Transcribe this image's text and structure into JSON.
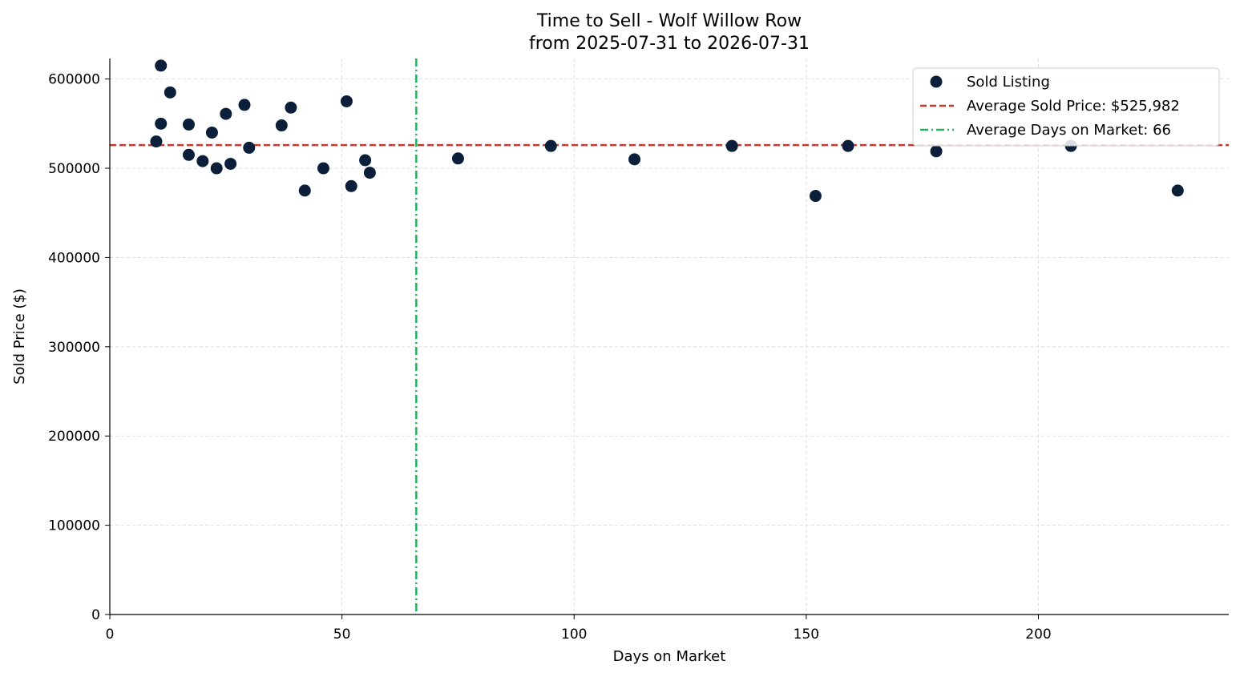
{
  "chart_data": {
    "type": "scatter",
    "title": "Time to Sell - Wolf Willow Row",
    "subtitle": "from 2025-07-31 to 2026-07-31",
    "xlabel": "Days on Market",
    "ylabel": "Sold Price ($)",
    "xlim": [
      0,
      241
    ],
    "ylim": [
      0,
      623000
    ],
    "xticks": [
      0,
      50,
      100,
      150,
      200
    ],
    "yticks": [
      0,
      100000,
      200000,
      300000,
      400000,
      500000,
      600000
    ],
    "grid": true,
    "legend_position": "top-right",
    "series": [
      {
        "name": "Sold Listing",
        "color": "#0b1f3a",
        "points": [
          {
            "x": 10,
            "y": 530000
          },
          {
            "x": 11,
            "y": 615000
          },
          {
            "x": 11,
            "y": 550000
          },
          {
            "x": 13,
            "y": 585000
          },
          {
            "x": 17,
            "y": 549000
          },
          {
            "x": 17,
            "y": 515000
          },
          {
            "x": 20,
            "y": 508000
          },
          {
            "x": 22,
            "y": 540000
          },
          {
            "x": 23,
            "y": 500000
          },
          {
            "x": 25,
            "y": 561000
          },
          {
            "x": 26,
            "y": 505000
          },
          {
            "x": 29,
            "y": 571000
          },
          {
            "x": 30,
            "y": 523000
          },
          {
            "x": 37,
            "y": 548000
          },
          {
            "x": 39,
            "y": 568000
          },
          {
            "x": 42,
            "y": 475000
          },
          {
            "x": 46,
            "y": 500000
          },
          {
            "x": 51,
            "y": 575000
          },
          {
            "x": 52,
            "y": 480000
          },
          {
            "x": 55,
            "y": 509000
          },
          {
            "x": 56,
            "y": 495000
          },
          {
            "x": 75,
            "y": 511000
          },
          {
            "x": 95,
            "y": 525000
          },
          {
            "x": 113,
            "y": 510000
          },
          {
            "x": 134,
            "y": 525000
          },
          {
            "x": 152,
            "y": 469000
          },
          {
            "x": 159,
            "y": 525000
          },
          {
            "x": 178,
            "y": 519000
          },
          {
            "x": 207,
            "y": 525000
          },
          {
            "x": 230,
            "y": 475000
          }
        ]
      }
    ],
    "reference_lines": [
      {
        "name": "Average Sold Price: $525,982",
        "orientation": "horizontal",
        "value": 525982,
        "color": "#c0392b",
        "style": "dashed"
      },
      {
        "name": "Average Days on Market: 66",
        "orientation": "vertical",
        "value": 66,
        "color": "#27ae60",
        "style": "dashdot"
      }
    ]
  }
}
